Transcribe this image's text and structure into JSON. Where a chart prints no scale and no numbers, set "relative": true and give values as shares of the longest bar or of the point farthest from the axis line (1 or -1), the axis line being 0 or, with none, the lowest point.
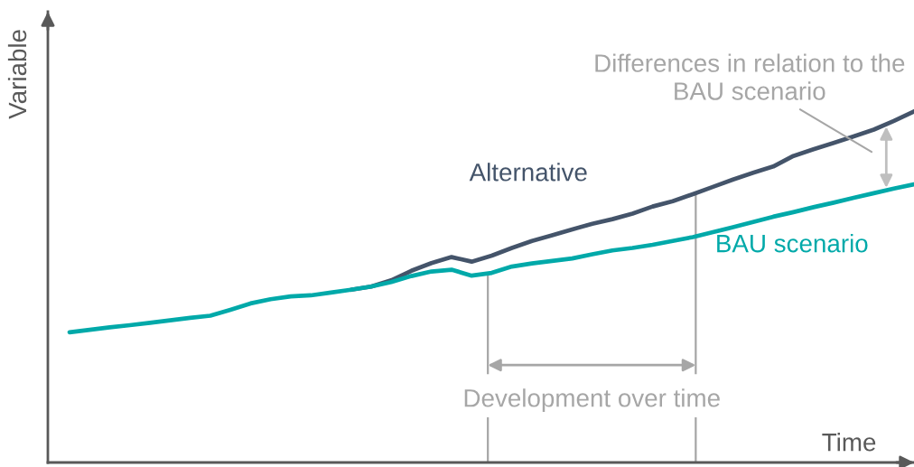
{
  "chart_data": {
    "type": "line",
    "relative": true,
    "xlabel": "Time",
    "ylabel": "Variable",
    "line_style": "solid",
    "categories": [
      null,
      null,
      null,
      null,
      null,
      null,
      null,
      null,
      null,
      null,
      null,
      null,
      null,
      null,
      null,
      null,
      null,
      null,
      null,
      null,
      null,
      null,
      null,
      null,
      null,
      null,
      null,
      null,
      null,
      null,
      null,
      null,
      null,
      null,
      null,
      null,
      null,
      null,
      null,
      null,
      null,
      null,
      null
    ],
    "series": [
      {
        "name": "Alternative",
        "color": "#44546a",
        "values": [
          null,
          null,
          null,
          null,
          null,
          null,
          null,
          null,
          null,
          null,
          null,
          null,
          null,
          null,
          0.492,
          0.501,
          0.519,
          0.546,
          0.568,
          0.585,
          0.572,
          0.589,
          0.611,
          0.631,
          0.647,
          0.664,
          0.68,
          0.693,
          0.709,
          0.729,
          0.744,
          0.764,
          0.785,
          0.806,
          0.825,
          0.843,
          0.873,
          0.892,
          0.91,
          0.929,
          0.948,
          0.973,
          1
        ]
      },
      {
        "name": "BAU scenario",
        "color": "#00a9a9",
        "values": [
          0.371,
          0.378,
          0.385,
          0.391,
          0.398,
          0.405,
          0.412,
          0.418,
          0.435,
          0.453,
          0.465,
          0.473,
          0.476,
          0.484,
          0.492,
          0.501,
          0.514,
          0.531,
          0.544,
          0.549,
          0.532,
          0.54,
          0.558,
          0.567,
          0.574,
          0.581,
          0.593,
          0.604,
          0.611,
          0.62,
          0.631,
          0.642,
          0.656,
          0.67,
          0.685,
          0.7,
          0.713,
          0.727,
          0.74,
          0.754,
          0.767,
          0.78,
          0.792
        ]
      }
    ],
    "annotations": [
      "Differences in relation to the\nBAU scenario",
      "Development over time"
    ]
  }
}
